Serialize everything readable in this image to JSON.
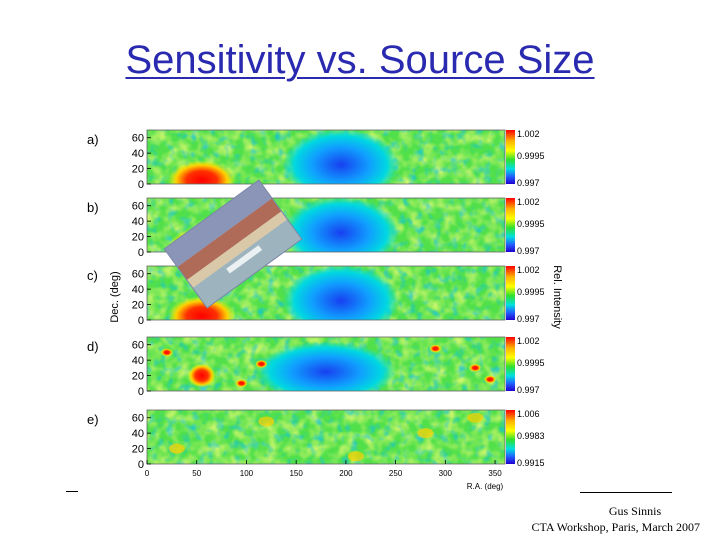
{
  "slide": {
    "title": "Sensitivity vs. Source Size",
    "author": "Gus Sinnis",
    "event": "CTA Workshop, Paris, March 2007"
  },
  "chart_data": {
    "type": "heatmap",
    "title": "Sensitivity vs. Source Size",
    "xlabel": "R.A. (deg)",
    "ylabel": "Dec. (deg)",
    "colorbar_label": "Rel. Intensity",
    "xlim": [
      0,
      360
    ],
    "ylim": [
      0,
      70
    ],
    "x_ticks": [
      0,
      50,
      100,
      150,
      200,
      250,
      300,
      350
    ],
    "y_ticks": [
      0,
      20,
      40,
      60
    ],
    "panels": [
      {
        "label": "a)",
        "colorbar_ticks": [
          "1.002",
          "0.9995",
          "0.997"
        ],
        "range": [
          0.997,
          1.002
        ],
        "features": [
          {
            "x": 55,
            "y": 5,
            "value": 1.002
          },
          {
            "x": 195,
            "y": 25,
            "value": 0.997
          }
        ]
      },
      {
        "label": "b)",
        "colorbar_ticks": [
          "1.002",
          "0.9995",
          "0.997"
        ],
        "range": [
          0.997,
          1.002
        ],
        "features": [
          {
            "x": 55,
            "y": 5,
            "value": 1.002
          },
          {
            "x": 195,
            "y": 25,
            "value": 0.997
          }
        ]
      },
      {
        "label": "c)",
        "colorbar_ticks": [
          "1.002",
          "0.9995",
          "0.997"
        ],
        "range": [
          0.997,
          1.002
        ],
        "features": [
          {
            "x": 55,
            "y": 5,
            "value": 1.002
          },
          {
            "x": 195,
            "y": 25,
            "value": 0.997
          }
        ]
      },
      {
        "label": "d)",
        "colorbar_ticks": [
          "1.002",
          "0.9995",
          "0.997"
        ],
        "range": [
          0.997,
          1.002
        ],
        "features": [
          {
            "x": 55,
            "y": 20,
            "value": 1.002
          },
          {
            "x": 180,
            "y": 25,
            "value": 0.997
          }
        ]
      },
      {
        "label": "e)",
        "colorbar_ticks": [
          "1.006",
          "0.9983",
          "0.9915"
        ],
        "range": [
          0.9915,
          1.006
        ],
        "features": []
      }
    ]
  }
}
